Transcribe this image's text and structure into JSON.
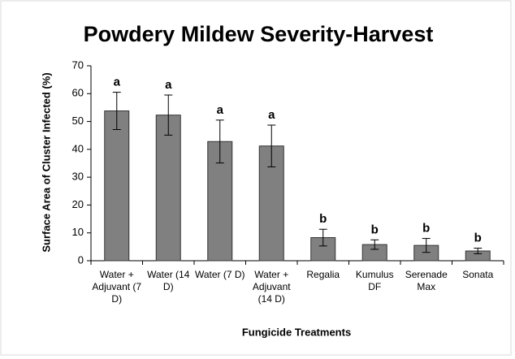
{
  "chart_data": {
    "type": "bar",
    "title": "Powdery Mildew Severity-Harvest",
    "ylabel": "Surface Area of Cluster Infected (%)",
    "xlabel": "Fungicide Treatments",
    "categories": [
      "Water + Adjuvant (7 D)",
      "Water (14 D)",
      "Water (7 D)",
      "Water + Adjuvant (14 D)",
      "Regalia",
      "Kumulus DF",
      "Serenade Max",
      "Sonata"
    ],
    "values": [
      53.8,
      52.3,
      42.8,
      41.2,
      8.3,
      5.8,
      5.5,
      3.5
    ],
    "errors": [
      6.7,
      7.2,
      7.7,
      7.5,
      3.0,
      1.7,
      2.5,
      1.0
    ],
    "annotations": [
      "a",
      "a",
      "a",
      "a",
      "b",
      "b",
      "b",
      "b"
    ],
    "color": "#808080",
    "ylim": [
      0,
      70
    ],
    "yticks": [
      0,
      10,
      20,
      30,
      40,
      50,
      60,
      70
    ],
    "grid": false
  }
}
